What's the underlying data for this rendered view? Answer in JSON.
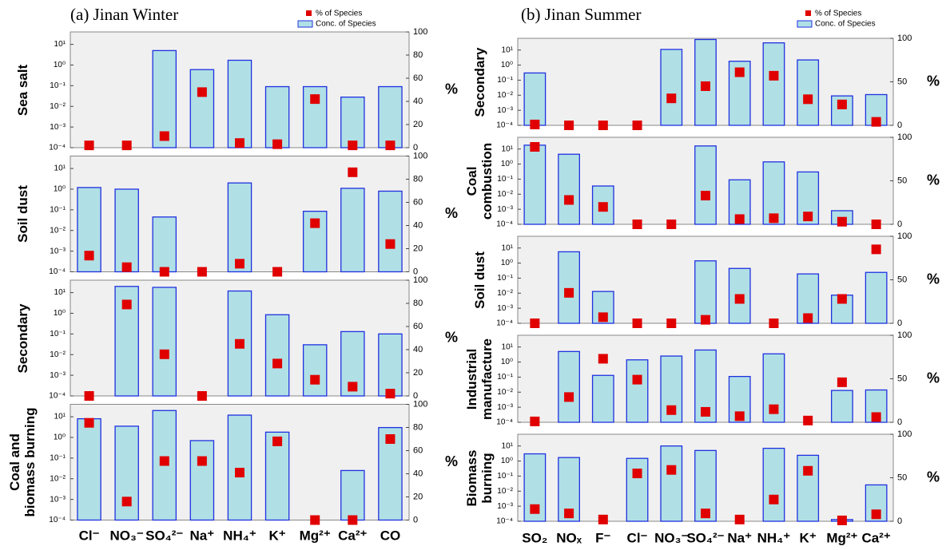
{
  "chart_data": [
    {
      "type": "bar",
      "title": "(a) Jinan Winter",
      "log_y": true,
      "categories": [
        "Cl⁻",
        "NO₃⁻",
        "SO₄²⁻",
        "Na⁺",
        "NH₄⁺",
        "K⁺",
        "Mg²⁺",
        "Ca²⁺",
        "CO"
      ],
      "ylim": [
        0.0001,
        40
      ],
      "yticks": [
        {
          "value": 0.0001,
          "label": "10⁻⁴"
        },
        {
          "value": 0.001,
          "label": "10⁻³"
        },
        {
          "value": 0.01,
          "label": "10⁻²"
        },
        {
          "value": 0.1,
          "label": "10⁻¹"
        },
        {
          "value": 1,
          "label": "10⁰"
        },
        {
          "value": 10,
          "label": "10¹"
        }
      ],
      "y2lim": [
        0,
        100
      ],
      "y2ticks": [
        0,
        20,
        40,
        60,
        80,
        100
      ],
      "y2label": "%",
      "series": [
        {
          "name": "% of Species",
          "color": "#e00000"
        },
        {
          "name": "Conc. of Species",
          "color": "#b0e0e6"
        }
      ],
      "factors": [
        {
          "name": "Sea salt",
          "conc": [
            null,
            null,
            5,
            0.6,
            1.7,
            0.09,
            0.09,
            0.028,
            0.09
          ],
          "pct": [
            2,
            2,
            10,
            48,
            4,
            3,
            42,
            2,
            2
          ]
        },
        {
          "name": "Soil dust",
          "conc": [
            1.2,
            1.0,
            0.045,
            null,
            2,
            null,
            0.085,
            1.1,
            0.8
          ],
          "pct": [
            14,
            4,
            0,
            0,
            7,
            0,
            42,
            86,
            24
          ]
        },
        {
          "name": "Secondary",
          "conc": [
            null,
            20,
            18,
            null,
            12,
            0.85,
            0.03,
            0.13,
            0.1
          ],
          "pct": [
            0,
            79,
            36,
            0,
            45,
            28,
            14,
            8,
            2
          ]
        },
        {
          "name": "Coal and biomass burning",
          "conc": [
            8,
            3.5,
            20,
            0.7,
            12,
            1.8,
            null,
            0.025,
            3
          ],
          "pct": [
            84,
            16,
            51,
            51,
            41,
            68,
            0,
            0,
            70
          ]
        }
      ]
    },
    {
      "type": "bar",
      "title": "(b) Jinan Summer",
      "log_y": true,
      "categories": [
        "SO₂",
        "NOₓ",
        "F⁻",
        "Cl⁻",
        "NO₃⁻",
        "SO₄²⁻",
        "Na⁺",
        "NH₄⁺",
        "K⁺",
        "Mg²⁺",
        "Ca²⁺"
      ],
      "ylim": [
        0.0001,
        60
      ],
      "yticks": [
        {
          "value": 0.0001,
          "label": "10⁻⁴"
        },
        {
          "value": 0.001,
          "label": "10⁻³"
        },
        {
          "value": 0.01,
          "label": "10⁻²"
        },
        {
          "value": 0.1,
          "label": "10⁻¹"
        },
        {
          "value": 1,
          "label": "10⁰"
        },
        {
          "value": 10,
          "label": "10¹"
        }
      ],
      "y2lim": [
        0,
        100
      ],
      "y2ticks": [
        0,
        50,
        100
      ],
      "y2label": "%",
      "series": [
        {
          "name": "% of Species",
          "color": "#e00000"
        },
        {
          "name": "Conc. of Species",
          "color": "#b0e0e6"
        }
      ],
      "factors": [
        {
          "name": "Secondary",
          "conc": [
            0.3,
            null,
            null,
            null,
            11,
            50,
            1.8,
            30,
            2.2,
            0.009,
            0.011
          ],
          "pct": [
            1,
            0,
            0,
            0,
            31,
            45,
            61,
            57,
            30,
            24,
            4
          ]
        },
        {
          "name": "Coal combustion",
          "conc": [
            18,
            4.5,
            0.035,
            null,
            null,
            16,
            0.09,
            1.4,
            0.3,
            0.0008,
            null
          ],
          "pct": [
            89,
            28,
            20,
            0,
            0,
            33,
            6,
            7,
            9,
            3,
            0
          ]
        },
        {
          "name": "Soil dust",
          "conc": [
            null,
            5.6,
            0.013,
            null,
            null,
            1.4,
            0.44,
            null,
            0.19,
            0.0074,
            0.24
          ],
          "pct": [
            0,
            35,
            7,
            0,
            0,
            4,
            28,
            0,
            6,
            28,
            85
          ]
        },
        {
          "name": "Industrial manufacture",
          "conc": [
            null,
            5,
            0.13,
            1.4,
            2.5,
            6.3,
            0.11,
            3.5,
            null,
            0.013,
            0.014
          ],
          "pct": [
            1,
            29,
            73,
            49,
            14,
            12,
            7,
            15,
            2,
            46,
            6
          ]
        },
        {
          "name": "Biomass burning",
          "conc": [
            3,
            1.7,
            null,
            1.5,
            10,
            5,
            null,
            7,
            2.4,
            0.00013,
            0.026
          ],
          "pct": [
            14,
            9,
            2,
            55,
            59,
            9,
            2,
            25,
            58,
            1,
            8
          ]
        }
      ]
    }
  ]
}
